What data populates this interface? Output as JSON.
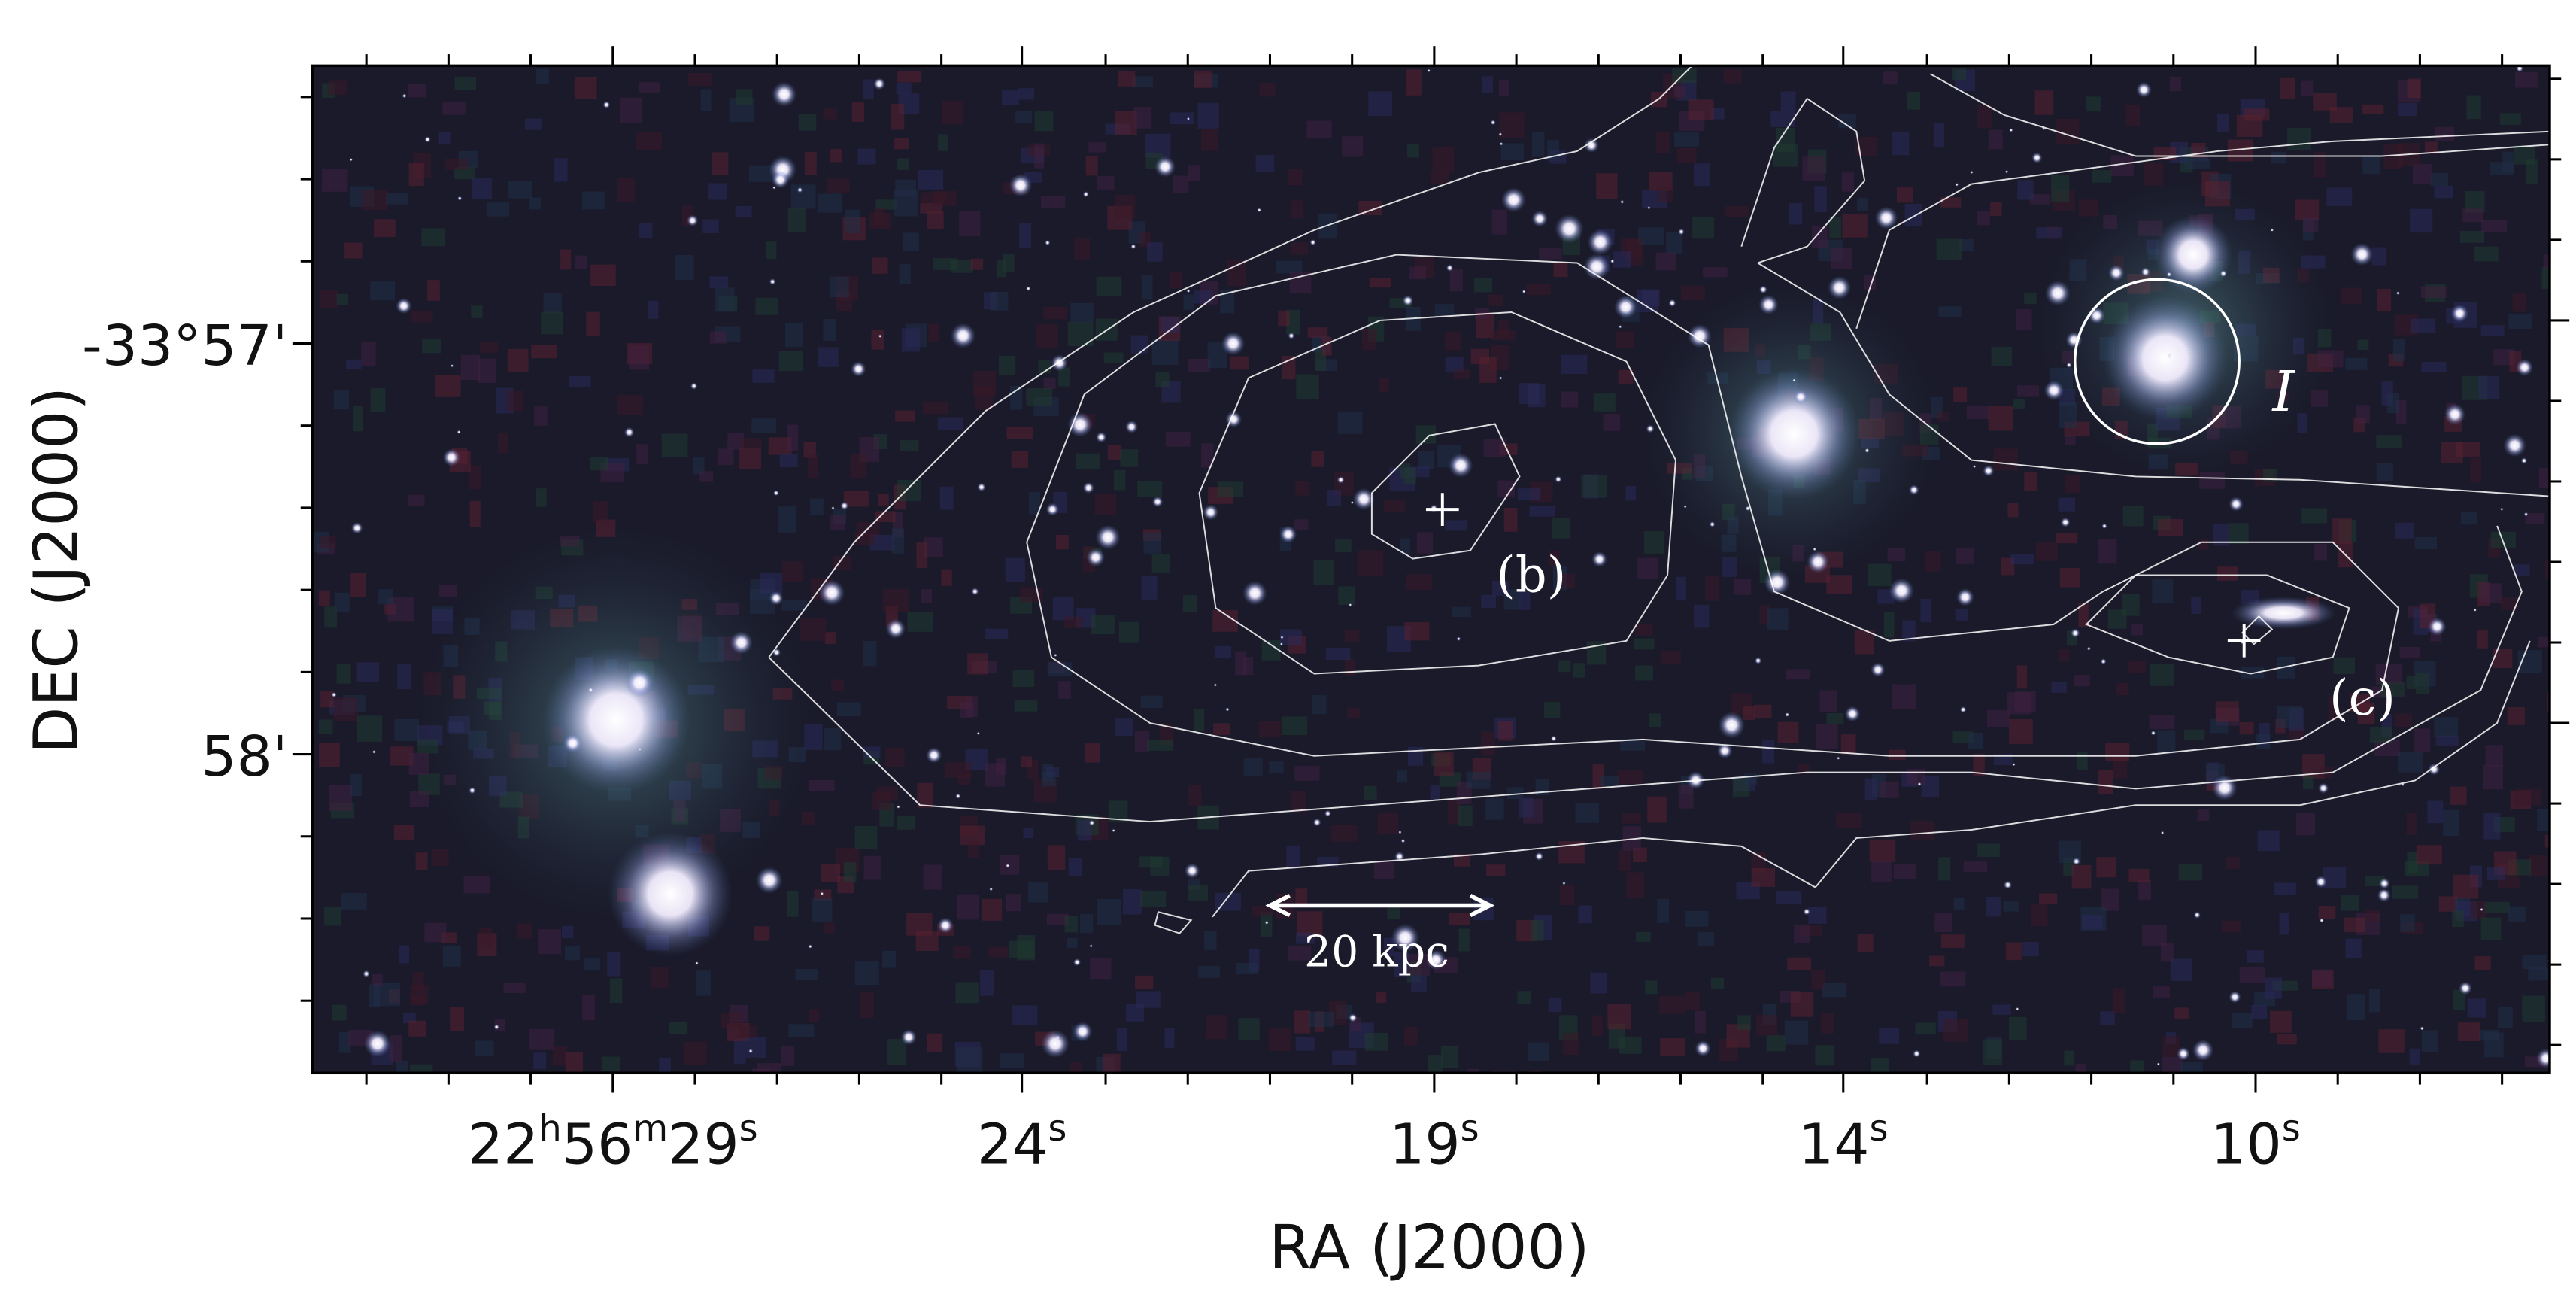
{
  "image": {
    "x_axis_label": "RA (J2000)",
    "y_axis_label": "DEC (J2000)",
    "x_tick_labels": [
      [
        "22",
        "h",
        "56",
        "m",
        "29",
        "s"
      ],
      [
        "24",
        "s"
      ],
      [
        "19",
        "s"
      ],
      [
        "14",
        "s"
      ],
      [
        "10",
        "s"
      ]
    ],
    "y_tick_labels": [
      "-33°57'",
      "58'"
    ],
    "annotations": {
      "b": "(b)",
      "c": "(c)",
      "scale_bar": "20 kpc",
      "marker": "I"
    }
  }
}
